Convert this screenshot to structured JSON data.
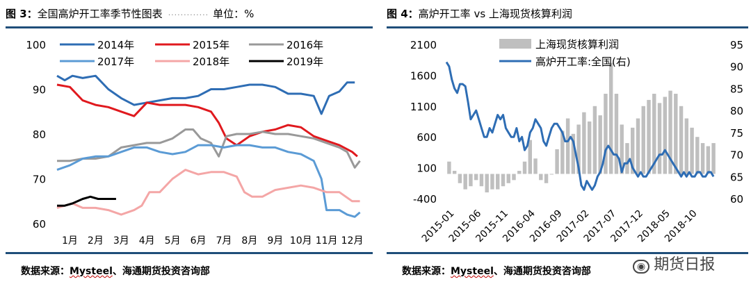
{
  "left": {
    "fig_num": "图 3：",
    "title": "全国高炉开工率季节性图表",
    "unit": "单位：%",
    "source_prefix": "数据来源：",
    "source_brand": "Mysteel",
    "source_suffix": "、海通期货投资咨询部",
    "chart_data": {
      "type": "line",
      "ylim": [
        60,
        100
      ],
      "yticks": [
        60,
        70,
        80,
        90,
        100
      ],
      "x_labels": [
        "1月",
        "2月",
        "3月",
        "4月",
        "5月",
        "6月",
        "7月",
        "8月",
        "9月",
        "10月",
        "11月",
        "12月"
      ],
      "xlim": [
        1,
        13
      ],
      "series": [
        {
          "name": "2014年",
          "color": "#2e6db4",
          "x": [
            1,
            1.3,
            1.6,
            2,
            2.5,
            3,
            3.5,
            4,
            4.5,
            5,
            5.5,
            6,
            6.5,
            7,
            7.5,
            8,
            8.5,
            9,
            9.5,
            10,
            10.5,
            11,
            11.3,
            11.6,
            12,
            12.3,
            12.6
          ],
          "y": [
            93,
            92,
            93,
            92.5,
            93,
            90,
            88,
            86.5,
            87,
            87.5,
            88,
            88,
            88.5,
            90,
            90,
            90.5,
            91,
            91,
            90.5,
            89,
            89,
            88.5,
            84.5,
            88.5,
            89.5,
            91.5,
            91.5
          ]
        },
        {
          "name": "2015年",
          "color": "#e0191e",
          "x": [
            1,
            1.5,
            2,
            2.5,
            3,
            3.5,
            4,
            4.5,
            5,
            5.5,
            6,
            6.5,
            7,
            7.3,
            7.6,
            8,
            8.5,
            9,
            9.5,
            10,
            10.5,
            11,
            11.5,
            12,
            12.5,
            12.7
          ],
          "y": [
            91,
            90.5,
            87.5,
            86.5,
            86,
            85,
            84,
            87,
            86.5,
            86.5,
            86.5,
            86,
            85,
            82.5,
            79,
            77.5,
            79.5,
            80.5,
            81,
            82,
            81.5,
            79.5,
            78.5,
            77.5,
            76,
            75
          ]
        },
        {
          "name": "2016年",
          "color": "#999999",
          "x": [
            1,
            1.5,
            2,
            2.5,
            3,
            3.5,
            4,
            4.5,
            5,
            5.5,
            6,
            6.3,
            6.6,
            7,
            7.3,
            7.6,
            8,
            8.5,
            9,
            9.5,
            10,
            10.5,
            11,
            11.5,
            12,
            12.3,
            12.6,
            12.8
          ],
          "y": [
            74,
            74,
            74.5,
            74.5,
            75,
            77,
            77.5,
            78,
            78,
            79,
            81,
            81,
            79,
            78,
            75,
            79.5,
            80,
            80,
            80.5,
            80,
            80,
            79.5,
            79,
            78,
            77,
            76,
            72.5,
            74
          ]
        },
        {
          "name": "2017年",
          "color": "#5b9bd5",
          "x": [
            1,
            1.5,
            2,
            2.5,
            3,
            3.5,
            4,
            4.5,
            5,
            5.5,
            6,
            6.5,
            7,
            7.5,
            8,
            8.5,
            9,
            9.5,
            10,
            10.5,
            11,
            11.3,
            11.5,
            12,
            12.3,
            12.6,
            12.8
          ],
          "y": [
            72,
            73,
            74.5,
            75,
            75,
            76,
            77,
            77,
            76,
            75.5,
            76,
            77.5,
            77.5,
            77,
            77.5,
            77.5,
            77,
            77,
            76,
            75.5,
            74,
            70,
            63,
            63,
            62,
            61.5,
            62.5
          ]
        },
        {
          "name": "2018年",
          "color": "#f4a6a6",
          "x": [
            1,
            1.3,
            1.6,
            2,
            2.5,
            3,
            3.5,
            4,
            4.3,
            4.6,
            5,
            5.5,
            6,
            6.5,
            7,
            7.5,
            8,
            8.3,
            8.6,
            9,
            9.5,
            10,
            10.5,
            11,
            11.5,
            12,
            12.5,
            12.8
          ],
          "y": [
            63.5,
            64,
            64.5,
            63.5,
            63.5,
            63,
            62,
            63,
            64,
            67,
            67,
            70,
            72,
            71,
            71.5,
            71.5,
            70.5,
            67,
            66,
            66,
            67.5,
            68,
            68.5,
            68,
            67,
            67,
            65,
            65
          ]
        },
        {
          "name": "2019年",
          "color": "#000000",
          "x": [
            1,
            1.3,
            1.6,
            2,
            2.3,
            2.6,
            3,
            3.3
          ],
          "y": [
            64,
            64,
            64.5,
            65.5,
            66,
            65.5,
            65.5,
            65.5
          ]
        }
      ]
    }
  },
  "right": {
    "fig_num": "图 4：",
    "title": "高炉开工率 vs 上海现货核算利润",
    "source_prefix": "数据来源：",
    "source_brand": "Mysteel",
    "source_suffix": "、海通期货投资咨询部",
    "chart_data": {
      "type": "bar+line",
      "x_labels": [
        "2015-01",
        "2015-06",
        "2015-11",
        "2016-04",
        "2016-09",
        "2017-02",
        "2017-07",
        "2017-12",
        "2018-05",
        "2018-10"
      ],
      "xlim": [
        0,
        50
      ],
      "left_axis": {
        "ylim": [
          -400,
          2100
        ],
        "ticks": [
          -400,
          100,
          600,
          1100,
          1600,
          2100
        ]
      },
      "right_axis": {
        "ylim": [
          60,
          95
        ],
        "ticks": [
          60,
          65,
          70,
          75,
          80,
          85,
          90,
          95
        ]
      },
      "series": [
        {
          "name": "上海现货核算利润",
          "axis": "left",
          "type": "bar",
          "color": "#bfbfbf",
          "values": [
            200,
            50,
            -150,
            -250,
            -200,
            -100,
            -200,
            -300,
            -250,
            -250,
            -200,
            -150,
            -100,
            50,
            200,
            550,
            250,
            -100,
            -150,
            0,
            400,
            700,
            900,
            650,
            800,
            1000,
            850,
            1100,
            950,
            1300,
            1800,
            1300,
            800,
            500,
            750,
            900,
            1100,
            1200,
            1300,
            1150,
            1250,
            1350,
            1300,
            1100,
            900,
            750,
            600,
            500,
            450,
            500
          ]
        },
        {
          "name": "高炉开工率:全国(右)",
          "axis": "right",
          "type": "line",
          "color": "#2e6db4",
          "x": [
            0,
            0.5,
            1,
            1.5,
            2,
            2.5,
            3,
            3.5,
            4,
            4.5,
            5,
            5.5,
            6,
            6.5,
            7,
            7.5,
            8,
            8.5,
            9,
            9.5,
            10,
            10.5,
            11,
            11.5,
            12,
            12.5,
            13,
            13.5,
            14,
            14.5,
            15,
            15.5,
            16,
            16.5,
            17,
            17.5,
            18,
            18.5,
            19,
            19.5,
            20,
            20.5,
            21,
            21.5,
            22,
            22.5,
            23,
            23.5,
            24,
            24.5,
            25,
            25.5,
            26,
            26.5,
            27,
            27.5,
            28,
            28.5,
            29,
            29.5,
            30,
            30.5,
            31,
            31.5,
            32,
            32.5,
            33,
            33.5,
            34,
            34.5,
            35,
            35.5,
            36,
            36.5,
            37,
            37.5,
            38,
            38.5,
            39,
            39.5,
            40,
            40.5,
            41,
            41.5,
            42,
            42.5,
            43,
            43.5,
            44,
            44.5,
            45,
            45.5,
            46,
            46.5,
            47,
            47.5,
            48,
            48.5,
            49,
            49.5
          ],
          "y": [
            91,
            90,
            87,
            85,
            84,
            86,
            86,
            85.5,
            82,
            78,
            79,
            80,
            78,
            76,
            74,
            74,
            76,
            75,
            77,
            79,
            78,
            79,
            76,
            75,
            74,
            74,
            76,
            73,
            74,
            71,
            72,
            75,
            76,
            78,
            77,
            76,
            73,
            72,
            74,
            76,
            77,
            77,
            76,
            75,
            73,
            73,
            74,
            73,
            70,
            67,
            63,
            62,
            64,
            63,
            62,
            63,
            65,
            66,
            68,
            71,
            72,
            71,
            70,
            70,
            69,
            66,
            68,
            68,
            69,
            67,
            66,
            65,
            66,
            65,
            65,
            66,
            67,
            68,
            69,
            70,
            70,
            71,
            70,
            69,
            68,
            67,
            66,
            65,
            66,
            65,
            66,
            65,
            65,
            66,
            66,
            65,
            65,
            66,
            66,
            65
          ]
        }
      ]
    }
  },
  "watermark": {
    "icon": "wechat-icon",
    "text": "期货日报"
  }
}
